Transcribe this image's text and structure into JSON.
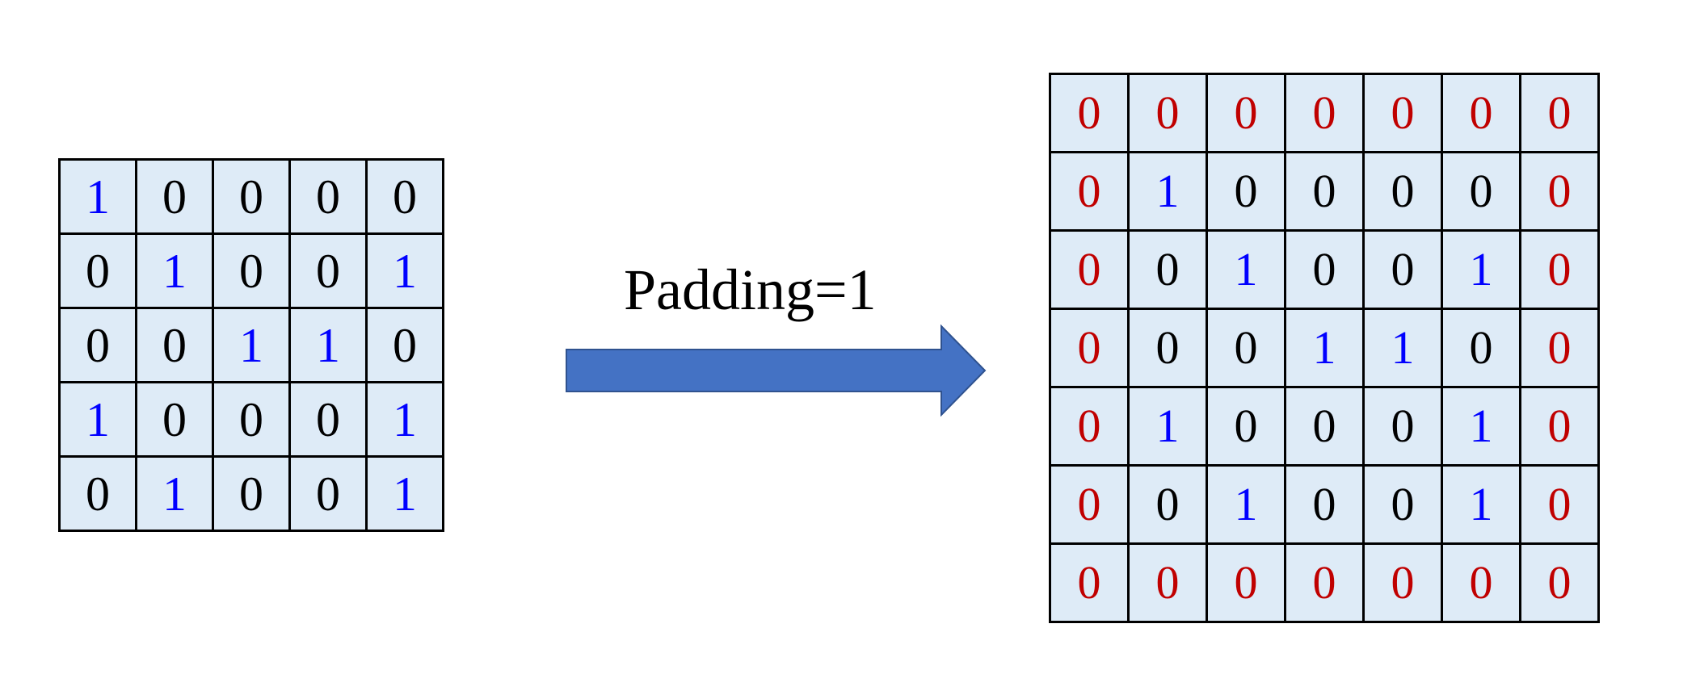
{
  "padding_label": "Padding=1",
  "colors": {
    "cell_fill": "#deebf7",
    "one": "#0000ff",
    "zero": "#000000",
    "padding": "#c00000",
    "arrow": "#4472c4"
  },
  "input_matrix": [
    [
      1,
      0,
      0,
      0,
      0
    ],
    [
      0,
      1,
      0,
      0,
      1
    ],
    [
      0,
      0,
      1,
      1,
      0
    ],
    [
      1,
      0,
      0,
      0,
      1
    ],
    [
      0,
      1,
      0,
      0,
      1
    ]
  ],
  "padding": 1,
  "pad_value": 0
}
